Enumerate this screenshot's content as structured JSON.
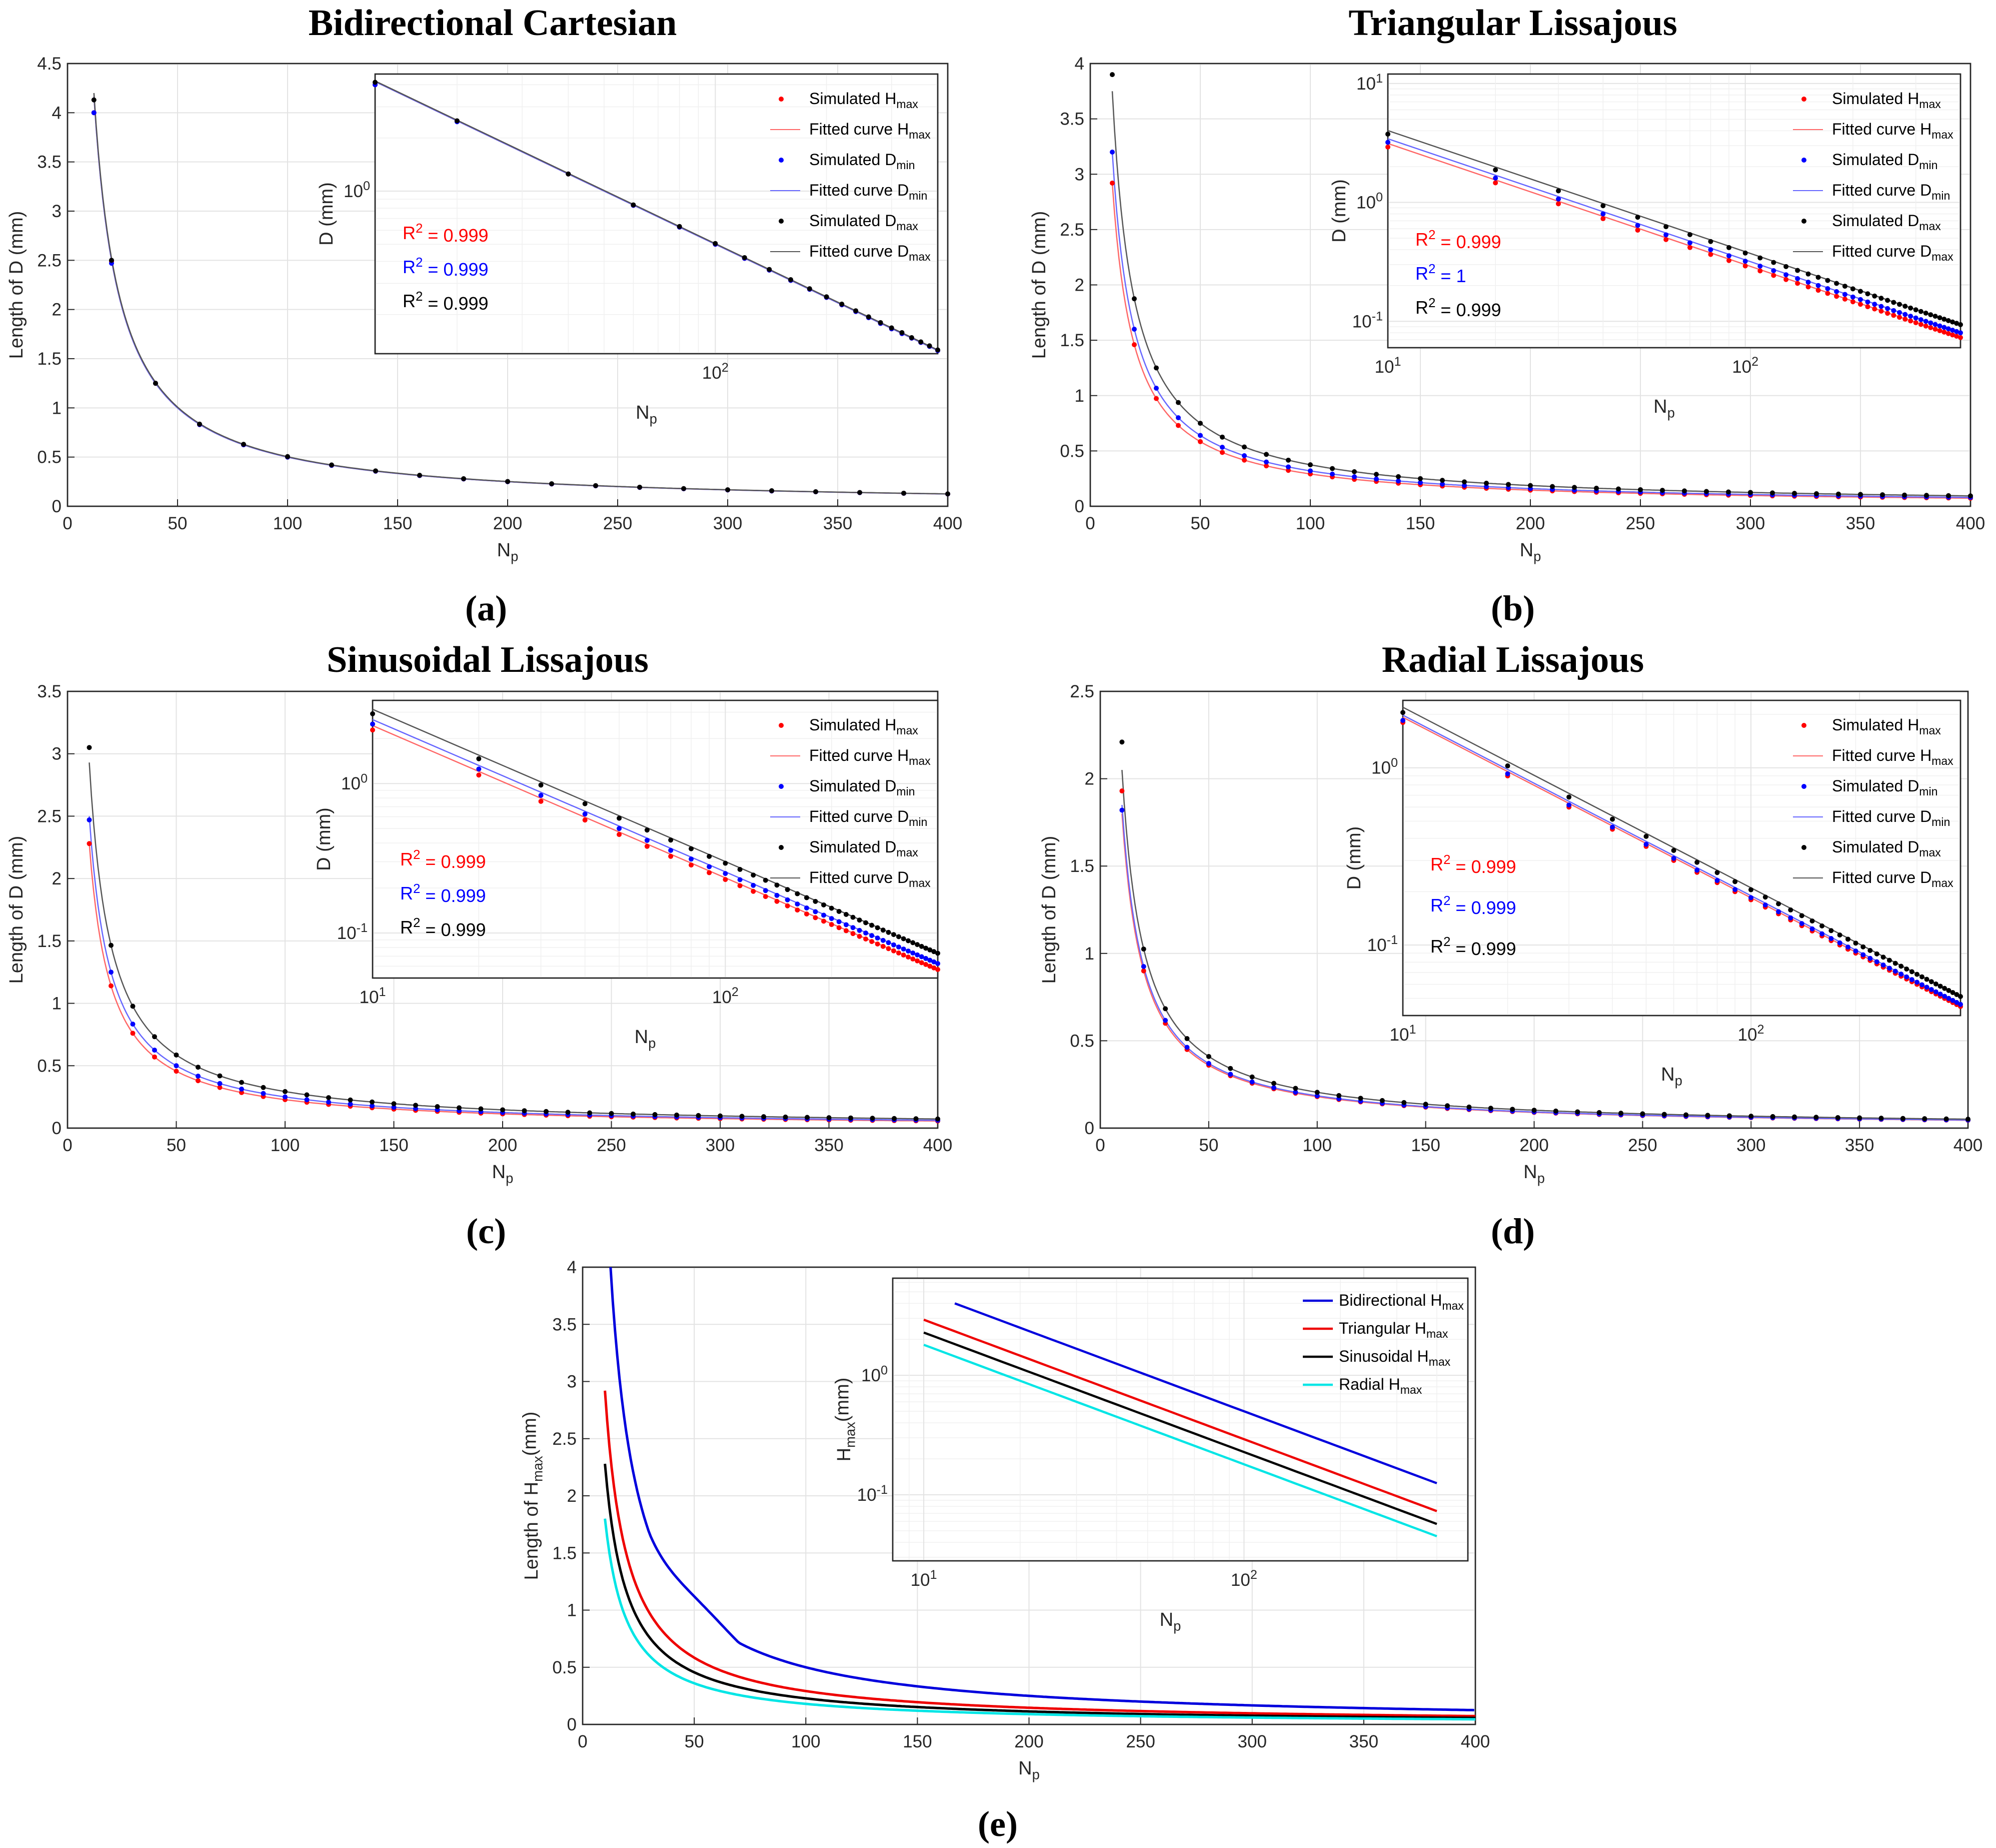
{
  "figure": {
    "panel_labels": [
      "(a)",
      "(b)",
      "(c)",
      "(d)",
      "(e)"
    ]
  },
  "colors": {
    "simulated_hmax": "#ff0000",
    "simulated_dmin": "#0000ff",
    "simulated_dmax": "#000000",
    "fitted_hmax": "#ff6666",
    "fitted_dmin": "#6666ff",
    "fitted_dmax": "#555555",
    "bidirectional": "#0000dd",
    "triangular": "#ee0000",
    "sinusoidal": "#000000",
    "radial": "#00e5e5"
  },
  "chart_data": [
    {
      "id": "a",
      "type": "scatter",
      "title": "Bidirectional Cartesian",
      "xlabel": "Np",
      "ylabel": "Length of D (mm)",
      "xlim": [
        0,
        400
      ],
      "ylim": [
        0,
        4.5
      ],
      "xticks": [
        "0",
        "50",
        "100",
        "150",
        "200",
        "250",
        "300",
        "350",
        "400"
      ],
      "yticks": [
        "0",
        "0.5",
        "1",
        "1.5",
        "2",
        "2.5",
        "3",
        "3.5",
        "4",
        "4.5"
      ],
      "x": [
        12,
        20,
        40,
        60,
        80,
        100,
        120,
        140,
        160,
        180,
        200,
        220,
        240,
        260,
        280,
        300,
        320,
        340,
        360,
        380,
        400
      ],
      "series": [
        {
          "name": "Simulated Hmax",
          "color_key": "simulated_hmax",
          "values": [
            4.0,
            2.49,
            1.25,
            0.83,
            0.625,
            0.5,
            0.416,
            0.357,
            0.312,
            0.278,
            0.25,
            0.227,
            0.208,
            0.192,
            0.178,
            0.166,
            0.156,
            0.147,
            0.139,
            0.132,
            0.125
          ]
        },
        {
          "name": "Simulated Dmin",
          "color_key": "simulated_dmin",
          "values": [
            4.0,
            2.47,
            1.25,
            0.83,
            0.625,
            0.5,
            0.416,
            0.357,
            0.312,
            0.278,
            0.25,
            0.227,
            0.208,
            0.192,
            0.178,
            0.166,
            0.156,
            0.147,
            0.139,
            0.132,
            0.125
          ]
        },
        {
          "name": "Simulated Dmax",
          "color_key": "simulated_dmax",
          "values": [
            4.13,
            2.5,
            1.25,
            0.835,
            0.63,
            0.505,
            0.42,
            0.36,
            0.315,
            0.28,
            0.252,
            0.229,
            0.21,
            0.194,
            0.18,
            0.168,
            0.158,
            0.148,
            0.14,
            0.133,
            0.126
          ]
        }
      ],
      "fit_coeff": {
        "Hmax": 50,
        "Dmin": 50,
        "Dmax": 50.4
      },
      "inset": {
        "xlabel": "Np",
        "ylabel": "D (mm)",
        "xscale": "log",
        "yscale": "log",
        "xlim": [
          12,
          400
        ],
        "ylim": [
          0.12,
          4.6
        ],
        "xtick": "10^2",
        "ytick": "10^0",
        "r2": [
          {
            "label": "R² = 0.999",
            "color_key": "simulated_hmax"
          },
          {
            "label": "R² = 0.999",
            "color_key": "simulated_dmin"
          },
          {
            "label": "R² = 0.999",
            "color_key": "simulated_dmax"
          }
        ]
      }
    },
    {
      "id": "b",
      "type": "scatter",
      "title": "Triangular Lissajous",
      "xlabel": "Np",
      "ylabel": "Length of D (mm)",
      "xlim": [
        0,
        400
      ],
      "ylim": [
        0,
        4
      ],
      "xticks": [
        "0",
        "50",
        "100",
        "150",
        "200",
        "250",
        "300",
        "350",
        "400"
      ],
      "yticks": [
        "0",
        "0.5",
        "1",
        "1.5",
        "2",
        "2.5",
        "3",
        "3.5",
        "4"
      ],
      "x_start": 10,
      "x_step": 10,
      "x_count": 40,
      "series": [
        {
          "name": "Simulated Hmax",
          "color_key": "simulated_hmax",
          "coeff": 29.2,
          "first": 2.92
        },
        {
          "name": "Simulated Dmin",
          "color_key": "simulated_dmin",
          "coeff": 32.0,
          "first": 3.2
        },
        {
          "name": "Simulated Dmax",
          "color_key": "simulated_dmax",
          "coeff": 37.5,
          "first": 3.9
        }
      ],
      "inset": {
        "xlabel": "Np",
        "ylabel": "D (mm)",
        "xscale": "log",
        "yscale": "log",
        "xlim": [
          10,
          400
        ],
        "ylim": [
          0.06,
          12
        ],
        "xticks": [
          "10^1",
          "10^2"
        ],
        "yticks": [
          "10^1",
          "10^0",
          "10^-1"
        ],
        "r2": [
          {
            "label": "R² = 0.999",
            "color_key": "simulated_hmax"
          },
          {
            "label": "R² = 1",
            "color_key": "simulated_dmin"
          },
          {
            "label": "R² = 0.999",
            "color_key": "simulated_dmax"
          }
        ]
      }
    },
    {
      "id": "c",
      "type": "scatter",
      "title": "Sinusoidal Lissajous",
      "xlabel": "Np",
      "ylabel": "Length of D (mm)",
      "xlim": [
        0,
        400
      ],
      "ylim": [
        0,
        3.5
      ],
      "xticks": [
        "0",
        "50",
        "100",
        "150",
        "200",
        "250",
        "300",
        "350",
        "400"
      ],
      "yticks": [
        "0",
        "0.5",
        "1",
        "1.5",
        "2",
        "2.5",
        "3",
        "3.5"
      ],
      "x_start": 10,
      "x_step": 10,
      "x_count": 40,
      "series": [
        {
          "name": "Simulated Hmax",
          "color_key": "simulated_hmax",
          "coeff": 22.8,
          "first": 2.28
        },
        {
          "name": "Simulated Dmin",
          "color_key": "simulated_dmin",
          "coeff": 25.0,
          "first": 2.47
        },
        {
          "name": "Simulated Dmax",
          "color_key": "simulated_dmax",
          "coeff": 29.3,
          "first": 3.05
        }
      ],
      "inset": {
        "xlabel": "Np",
        "ylabel": "D (mm)",
        "xscale": "log",
        "yscale": "log",
        "xlim": [
          10,
          400
        ],
        "ylim": [
          0.05,
          3.6
        ],
        "xticks": [
          "10^1",
          "10^2"
        ],
        "yticks": [
          "10^0",
          "10^-1"
        ],
        "r2": [
          {
            "label": "R² = 0.999",
            "color_key": "simulated_hmax"
          },
          {
            "label": "R² = 0.999",
            "color_key": "simulated_dmin"
          },
          {
            "label": "R² = 0.999",
            "color_key": "simulated_dmax"
          }
        ]
      }
    },
    {
      "id": "d",
      "type": "scatter",
      "title": "Radial Lissajous",
      "xlabel": "Np",
      "ylabel": "Length of D (mm)",
      "xlim": [
        0,
        400
      ],
      "ylim": [
        0,
        2.5
      ],
      "xticks": [
        "0",
        "50",
        "100",
        "150",
        "200",
        "250",
        "300",
        "350",
        "400"
      ],
      "yticks": [
        "0",
        "0.5",
        "1",
        "1.5",
        "2",
        "2.5"
      ],
      "x_start": 10,
      "x_step": 10,
      "x_count": 40,
      "series": [
        {
          "name": "Simulated Hmax",
          "color_key": "simulated_hmax",
          "coeff": 18.0,
          "first": 1.93
        },
        {
          "name": "Simulated Dmin",
          "color_key": "simulated_dmin",
          "coeff": 18.5,
          "first": 1.82
        },
        {
          "name": "Simulated Dmax",
          "color_key": "simulated_dmax",
          "coeff": 20.5,
          "first": 2.21
        }
      ],
      "inset": {
        "xlabel": "Np",
        "ylabel": "D (mm)",
        "xscale": "log",
        "yscale": "log",
        "xlim": [
          10,
          400
        ],
        "ylim": [
          0.04,
          2.4
        ],
        "xticks": [
          "10^1",
          "10^2"
        ],
        "yticks": [
          "10^0",
          "10^-1"
        ],
        "r2": [
          {
            "label": "R² = 0.999",
            "color_key": "simulated_hmax"
          },
          {
            "label": "R² = 0.999",
            "color_key": "simulated_dmin"
          },
          {
            "label": "R² = 0.999",
            "color_key": "simulated_dmax"
          }
        ]
      }
    },
    {
      "id": "e",
      "type": "line",
      "title": "",
      "xlabel": "Np",
      "ylabel": "Length of Hmax(mm)",
      "xlim": [
        0,
        400
      ],
      "ylim": [
        0,
        4
      ],
      "xticks": [
        "0",
        "50",
        "100",
        "150",
        "200",
        "250",
        "300",
        "350",
        "400"
      ],
      "yticks": [
        "0",
        "0.5",
        "1",
        "1.5",
        "2",
        "2.5",
        "3",
        "3.5",
        "4"
      ],
      "series": [
        {
          "name": "Bidirectional Hmax",
          "color_key": "bidirectional",
          "coeff": 50,
          "x_start": 12.5
        },
        {
          "name": "Triangular Hmax",
          "color_key": "triangular",
          "coeff": 29.2,
          "x_start": 10
        },
        {
          "name": "Sinusoidal Hmax",
          "color_key": "sinusoidal",
          "coeff": 22.8,
          "x_start": 10
        },
        {
          "name": "Radial Hmax",
          "color_key": "radial",
          "coeff": 18.0,
          "x_start": 10
        }
      ],
      "inset": {
        "xlabel": "Np",
        "ylabel": "Hmax(mm)",
        "xscale": "log",
        "yscale": "log",
        "xlim": [
          8,
          500
        ],
        "ylim": [
          0.028,
          6.5
        ],
        "xticks": [
          "10^1",
          "10^2"
        ],
        "yticks": [
          "10^0",
          "10^-1"
        ]
      }
    }
  ]
}
